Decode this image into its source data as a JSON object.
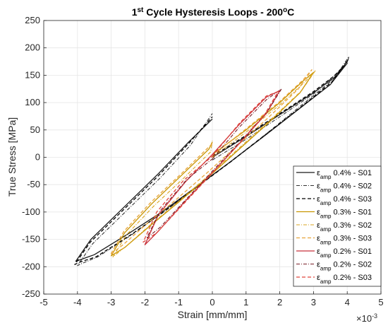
{
  "chart_data": {
    "type": "line",
    "title": "1st Cycle Hysteresis Loops - 200°C",
    "title_parts": {
      "pre": "1",
      "sup": "st",
      "mid": " Cycle Hysteresis Loops - 200",
      "deg": "o",
      "post": "C"
    },
    "xlabel": "Strain [mm/mm]",
    "ylabel": "True Stress [MPa]",
    "x_exponent_label": "×10",
    "x_exponent": "-3",
    "xlim": [
      -5,
      5
    ],
    "ylim": [
      -250,
      250
    ],
    "xticks": [
      "-5",
      "-4",
      "-3",
      "-2",
      "-1",
      "0",
      "1",
      "2",
      "3",
      "4",
      "5"
    ],
    "yticks": [
      "-250",
      "-200",
      "-150",
      "-100",
      "-50",
      "0",
      "50",
      "100",
      "150",
      "200",
      "250"
    ],
    "grid": true,
    "legend_position": "bottom-right",
    "series": [
      {
        "name": "εamp 0.4% - S01",
        "eps": "ε",
        "sub": "amp",
        "text": " 0.4% - S01",
        "color": "#1a1a1a",
        "dash": "",
        "width": 1.3,
        "x": [
          0,
          1,
          2,
          3,
          3.6,
          3.95,
          4.0,
          3.5,
          2.5,
          1.5,
          0.5,
          -0.5,
          -1.5,
          -2.5,
          -3.5,
          -3.95,
          -4.05,
          -3.6,
          -2.6,
          -1.6,
          -0.7,
          0
        ],
        "y": [
          0,
          38,
          78,
          118,
          145,
          168,
          172,
          133,
          85,
          37,
          -10,
          -55,
          -100,
          -140,
          -178,
          -188,
          -190,
          -150,
          -90,
          -30,
          28,
          70
        ]
      },
      {
        "name": "εamp 0.4% - S02",
        "eps": "ε",
        "sub": "amp",
        "text": " 0.4% - S02",
        "color": "#333333",
        "dash": "5,2,1,2",
        "width": 1.1,
        "x": [
          0,
          1,
          2,
          3,
          3.6,
          4.0,
          4.05,
          3.6,
          2.6,
          1.6,
          0.6,
          -0.4,
          -1.4,
          -2.4,
          -3.4,
          -3.9,
          -4.0,
          -3.55,
          -2.55,
          -1.55,
          -0.65,
          0
        ],
        "y": [
          -5,
          33,
          74,
          116,
          148,
          172,
          184,
          143,
          93,
          43,
          -5,
          -52,
          -98,
          -142,
          -182,
          -195,
          -198,
          -158,
          -98,
          -38,
          22,
          80
        ]
      },
      {
        "name": "εamp 0.4% - S03",
        "eps": "ε",
        "sub": "amp",
        "text": " 0.4% - S03",
        "color": "#000000",
        "dash": "5,3",
        "width": 1.3,
        "x": [
          0,
          1,
          2,
          3,
          3.6,
          3.95,
          4.02,
          3.55,
          2.55,
          1.55,
          0.55,
          -0.45,
          -1.45,
          -2.45,
          -3.45,
          -3.95,
          -4.08,
          -3.62,
          -2.62,
          -1.62,
          -0.72,
          0
        ],
        "y": [
          2,
          40,
          80,
          120,
          148,
          170,
          178,
          138,
          88,
          40,
          -8,
          -54,
          -100,
          -143,
          -182,
          -192,
          -196,
          -155,
          -95,
          -35,
          24,
          74
        ]
      },
      {
        "name": "εamp 0.3% - S01",
        "eps": "ε",
        "sub": "amp",
        "text": " 0.3% - S01",
        "color": "#c89500",
        "dash": "",
        "width": 1.3,
        "x": [
          0,
          1,
          2,
          2.7,
          3.0,
          2.6,
          1.7,
          0.8,
          -0.1,
          -1.0,
          -1.9,
          -2.6,
          -3.0,
          -2.6,
          -1.8,
          -0.9,
          -0.1,
          0
        ],
        "y": [
          5,
          50,
          100,
          140,
          155,
          118,
          65,
          15,
          -35,
          -82,
          -128,
          -165,
          -180,
          -138,
          -85,
          -32,
          15,
          28
        ]
      },
      {
        "name": "εamp 0.3% - S02",
        "eps": "ε",
        "sub": "amp",
        "text": " 0.3% - S02",
        "color": "#d9a520",
        "dash": "5,2,1,2",
        "width": 1.1,
        "x": [
          0,
          1,
          2,
          2.75,
          3.05,
          2.65,
          1.75,
          0.85,
          -0.05,
          -0.95,
          -1.85,
          -2.55,
          -2.95,
          -2.55,
          -1.75,
          -0.85,
          -0.05,
          0
        ],
        "y": [
          0,
          46,
          96,
          138,
          158,
          122,
          70,
          20,
          -30,
          -78,
          -124,
          -162,
          -182,
          -142,
          -90,
          -38,
          10,
          30
        ]
      },
      {
        "name": "εamp 0.3% - S03",
        "eps": "ε",
        "sub": "amp",
        "text": " 0.3% - S03",
        "color": "#e8a43a",
        "dash": "5,3",
        "width": 1.3,
        "x": [
          0,
          1,
          2,
          2.7,
          2.95,
          2.55,
          1.65,
          0.75,
          -0.15,
          -1.05,
          -1.95,
          -2.65,
          -3.02,
          -2.62,
          -1.82,
          -0.92,
          -0.12,
          0
        ],
        "y": [
          3,
          52,
          102,
          142,
          160,
          125,
          72,
          22,
          -28,
          -76,
          -122,
          -160,
          -178,
          -135,
          -82,
          -30,
          18,
          25
        ]
      },
      {
        "name": "εamp 0.2% - S01",
        "eps": "ε",
        "sub": "amp",
        "text": " 0.2% - S01",
        "color": "#c8323c",
        "dash": "",
        "width": 1.3,
        "x": [
          0,
          0.8,
          1.6,
          2.0,
          1.6,
          0.8,
          0,
          -0.8,
          -1.6,
          -2.0,
          -1.6,
          -0.8,
          0
        ],
        "y": [
          5,
          60,
          110,
          122,
          80,
          25,
          -28,
          -80,
          -135,
          -160,
          -105,
          -45,
          5
        ]
      },
      {
        "name": "εamp 0.2% - S02",
        "eps": "ε",
        "sub": "amp",
        "text": " 0.2% - S02",
        "color": "#7a1f28",
        "dash": "5,2,1,2",
        "width": 1.1,
        "x": [
          0,
          0.8,
          1.6,
          2.05,
          1.65,
          0.85,
          0.05,
          -0.75,
          -1.55,
          -1.95,
          -1.55,
          -0.75,
          0
        ],
        "y": [
          -3,
          55,
          105,
          125,
          85,
          30,
          -22,
          -75,
          -128,
          -148,
          -98,
          -40,
          -3
        ]
      },
      {
        "name": "εamp 0.2% - S03",
        "eps": "ε",
        "sub": "amp",
        "text": " 0.2% - S03",
        "color": "#e0463c",
        "dash": "5,3",
        "width": 1.3,
        "x": [
          0,
          0.8,
          1.6,
          1.95,
          1.55,
          0.75,
          -0.05,
          -0.85,
          -1.65,
          -2.05,
          -1.65,
          -0.85,
          0
        ],
        "y": [
          2,
          62,
          112,
          120,
          78,
          22,
          -32,
          -85,
          -138,
          -155,
          -100,
          -42,
          2
        ]
      }
    ]
  }
}
